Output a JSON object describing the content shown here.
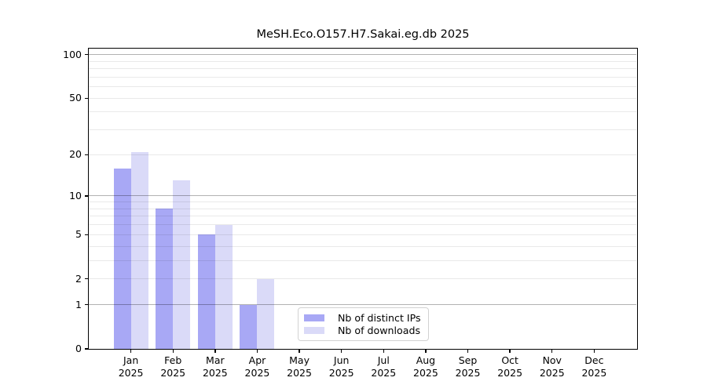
{
  "title": "MeSH.Eco.O157.H7.Sakai.eg.db 2025",
  "colors": {
    "distinct_ips": "#a8a8f5",
    "downloads": "#dadaf8",
    "axis": "#000000"
  },
  "legend": {
    "items": [
      {
        "label": "Nb of distinct IPs",
        "color": "#a8a8f5"
      },
      {
        "label": "Nb of downloads",
        "color": "#dadaf8"
      }
    ]
  },
  "chart_data": {
    "type": "bar",
    "title": "MeSH.Eco.O157.H7.Sakai.eg.db 2025",
    "categories": [
      "Jan",
      "Feb",
      "Mar",
      "Apr",
      "May",
      "Jun",
      "Jul",
      "Aug",
      "Sep",
      "Oct",
      "Nov",
      "Dec"
    ],
    "x_year": "2025",
    "series": [
      {
        "name": "Nb of distinct IPs",
        "color": "#a8a8f5",
        "values": [
          16,
          8,
          5,
          1,
          0,
          0,
          0,
          0,
          0,
          0,
          0,
          0
        ]
      },
      {
        "name": "Nb of downloads",
        "color": "#dadaf8",
        "values": [
          21,
          13,
          6,
          2,
          0,
          0,
          0,
          0,
          0,
          0,
          0,
          0
        ]
      }
    ],
    "yscale": "log1p",
    "ylim": [
      0,
      110
    ],
    "yticks_labeled": [
      0,
      1,
      2,
      5,
      10,
      20,
      50,
      100
    ],
    "yticks_decade": [
      1,
      10,
      100
    ],
    "yticks_minor": [
      3,
      4,
      6,
      7,
      8,
      9,
      30,
      40,
      60,
      70,
      80,
      90
    ],
    "grid": "horizontal",
    "legend_position": "lower center"
  }
}
